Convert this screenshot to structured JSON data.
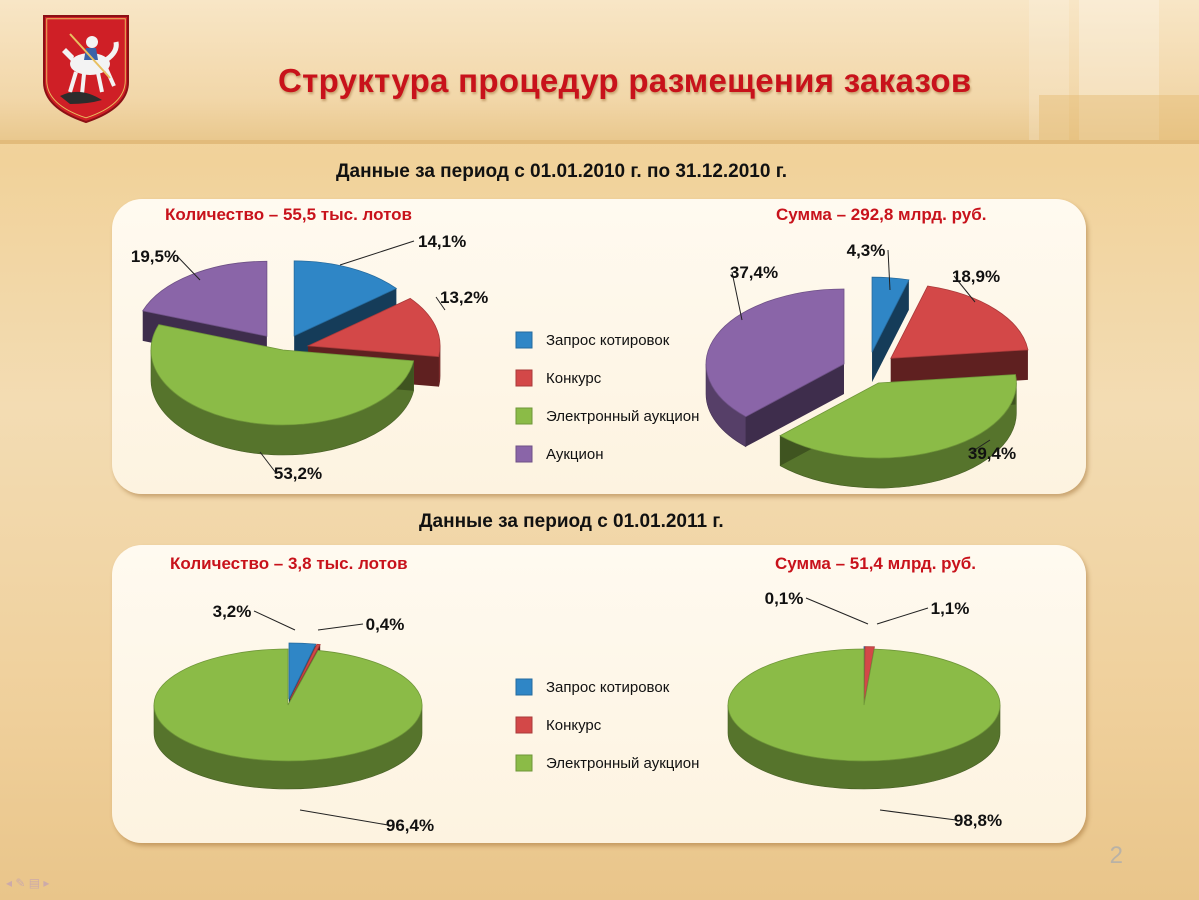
{
  "slide": {
    "title": "Структура процедур размещения заказов",
    "subtitle_2010": "Данные за период с 01.01.2010 г. по 31.12.2010 г.",
    "subtitle_2011": "Данные за период с 01.01.2011 г.",
    "page_number": "2"
  },
  "colors": {
    "quotation": "#2f86c6",
    "contest": "#d34848",
    "e_auction": "#8bbb47",
    "auction": "#8a65a8",
    "title_red": "#c8121b"
  },
  "legend_2010": [
    "Запрос котировок",
    "Конкурс",
    "Электронный аукцион",
    "Аукцион"
  ],
  "legend_2011": [
    "Запрос котировок",
    "Конкурс",
    "Электронный аукцион"
  ],
  "chart_data": [
    {
      "type": "pie",
      "title": "Количество – 55,5 тыс. лотов",
      "categories": [
        "Запрос котировок",
        "Конкурс",
        "Электронный аукцион",
        "Аукцион"
      ],
      "values": [
        14.1,
        13.2,
        53.2,
        19.5
      ],
      "labels": [
        "14,1%",
        "13,2%",
        "53,2%",
        "19,5%"
      ]
    },
    {
      "type": "pie",
      "title": "Сумма – 292,8 млрд. руб.",
      "categories": [
        "Запрос котировок",
        "Конкурс",
        "Электронный аукцион",
        "Аукцион"
      ],
      "values": [
        4.3,
        18.9,
        39.4,
        37.4
      ],
      "labels": [
        "4,3%",
        "18,9%",
        "39,4%",
        "37,4%"
      ]
    },
    {
      "type": "pie",
      "title": "Количество – 3,8 тыс. лотов",
      "categories": [
        "Запрос котировок",
        "Конкурс",
        "Электронный аукцион"
      ],
      "values": [
        3.2,
        0.4,
        96.4
      ],
      "labels": [
        "3,2%",
        "0,4%",
        "96,4%"
      ]
    },
    {
      "type": "pie",
      "title": "Сумма – 51,4 млрд. руб.",
      "categories": [
        "Запрос котировок",
        "Конкурс",
        "Электронный аукцион"
      ],
      "values": [
        0.1,
        1.1,
        98.8
      ],
      "labels": [
        "0,1%",
        "1,1%",
        "98,8%"
      ]
    }
  ]
}
